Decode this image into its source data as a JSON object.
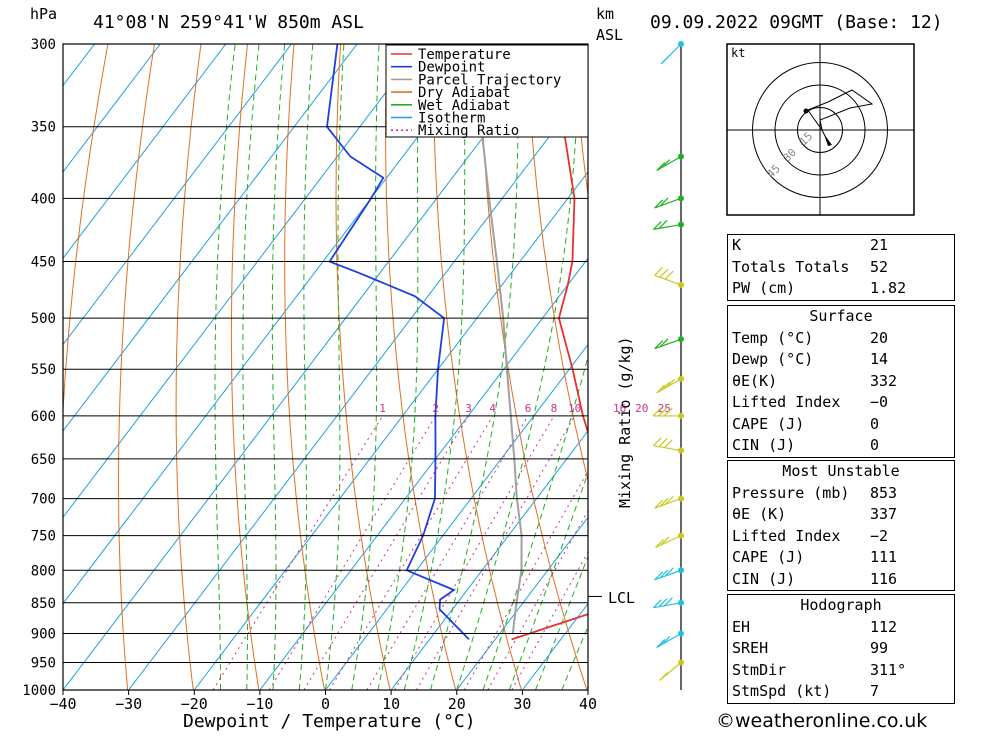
{
  "header": {
    "hpa_label": "hPa",
    "location": "41°08'N  259°41'W  850m  ASL",
    "km_label": "km",
    "asl_label": "ASL",
    "datetime": "09.09.2022  09GMT  (Base: 12)"
  },
  "chart_data": {
    "type": "skew-t",
    "xlabel": "Dewpoint / Temperature (°C)",
    "ylabel": "Mixing Ratio (g/kg)",
    "x_ticks": [
      -40,
      -30,
      -20,
      -10,
      0,
      10,
      20,
      30,
      40
    ],
    "x_range": [
      -40,
      40
    ],
    "pressure_levels": [
      300,
      350,
      400,
      450,
      500,
      550,
      600,
      650,
      700,
      750,
      800,
      850,
      900,
      950,
      1000
    ],
    "lcl_label": "LCL",
    "lcl_pressure": 840,
    "mixing_ratio_labels": [
      "1",
      "2",
      "3",
      "4",
      "6",
      "8",
      "10",
      "16",
      "20",
      "25"
    ],
    "legend": [
      {
        "name": "Temperature",
        "color": "#e8302e"
      },
      {
        "name": "Dewpoint",
        "color": "#1f3fe0"
      },
      {
        "name": "Parcel Trajectory",
        "color": "#a0a0a0"
      },
      {
        "name": "Dry Adiabat",
        "color": "#e07020"
      },
      {
        "name": "Wet Adiabat",
        "color": "#20b020"
      },
      {
        "name": "Isotherm",
        "color": "#20a0e0"
      },
      {
        "name": "Mixing Ratio",
        "color": "#d0308a"
      }
    ],
    "series": [
      {
        "name": "Temperature",
        "points": [
          [
            910,
            22.5
          ],
          [
            860,
            33.0
          ],
          [
            800,
            31.0
          ],
          [
            760,
            28.5
          ],
          [
            700,
            21.0
          ],
          [
            650,
            14.5
          ],
          [
            600,
            7.5
          ],
          [
            550,
            0.5
          ],
          [
            500,
            -7.5
          ],
          [
            470,
            -10.0
          ],
          [
            450,
            -12.0
          ],
          [
            400,
            -19.0
          ],
          [
            350,
            -29.0
          ],
          [
            300,
            -41.0
          ]
        ]
      },
      {
        "name": "Dewpoint",
        "points": [
          [
            910,
            16.0
          ],
          [
            860,
            8.0
          ],
          [
            845,
            7.0
          ],
          [
            830,
            8.0
          ],
          [
            800,
            -1.5
          ],
          [
            750,
            -3.0
          ],
          [
            700,
            -5.5
          ],
          [
            650,
            -10.0
          ],
          [
            600,
            -15.0
          ],
          [
            550,
            -20.0
          ],
          [
            500,
            -25.0
          ],
          [
            480,
            -32.0
          ],
          [
            460,
            -43.0
          ],
          [
            450,
            -49.0
          ],
          [
            400,
            -50.0
          ],
          [
            385,
            -50.5
          ],
          [
            370,
            -58.0
          ],
          [
            350,
            -65.0
          ],
          [
            300,
            -73.0
          ]
        ]
      },
      {
        "name": "Parcel Trajectory",
        "points": [
          [
            900,
            22.0
          ],
          [
            850,
            19.0
          ],
          [
            800,
            16.0
          ],
          [
            750,
            12.0
          ],
          [
            700,
            7.0
          ],
          [
            650,
            2.0
          ],
          [
            600,
            -3.5
          ],
          [
            550,
            -9.5
          ],
          [
            500,
            -16.0
          ],
          [
            450,
            -23.5
          ],
          [
            400,
            -32.0
          ],
          [
            350,
            -41.5
          ],
          [
            300,
            -52.5
          ]
        ]
      }
    ]
  },
  "hodograph": {
    "unit_label": "kt",
    "ring_labels": [
      "15",
      "30",
      "45"
    ]
  },
  "indices": [
    {
      "label": "K",
      "value": "21"
    },
    {
      "label": "Totals Totals",
      "value": "52"
    },
    {
      "label": "PW (cm)",
      "value": "1.82"
    }
  ],
  "surface": {
    "title": "Surface",
    "rows": [
      {
        "label": "Temp (°C)",
        "value": "20"
      },
      {
        "label": "Dewp (°C)",
        "value": "14"
      },
      {
        "label": "θE(K)",
        "value": "332"
      },
      {
        "label": "Lifted Index",
        "value": "−0"
      },
      {
        "label": "CAPE (J)",
        "value": "0"
      },
      {
        "label": "CIN (J)",
        "value": "0"
      }
    ]
  },
  "most_unstable": {
    "title": "Most Unstable",
    "rows": [
      {
        "label": "Pressure (mb)",
        "value": "853"
      },
      {
        "label": "θE (K)",
        "value": "337"
      },
      {
        "label": "Lifted Index",
        "value": "−2"
      },
      {
        "label": "CAPE (J)",
        "value": "111"
      },
      {
        "label": "CIN (J)",
        "value": "116"
      }
    ]
  },
  "hodograph_table": {
    "title": "Hodograph",
    "rows": [
      {
        "label": "EH",
        "value": "112"
      },
      {
        "label": "SREH",
        "value": "99"
      },
      {
        "label": "StmDir",
        "value": "311°"
      },
      {
        "label": "StmSpd (kt)",
        "value": "7"
      }
    ]
  },
  "footer": {
    "copyright": "©weatheronline.co.uk"
  }
}
